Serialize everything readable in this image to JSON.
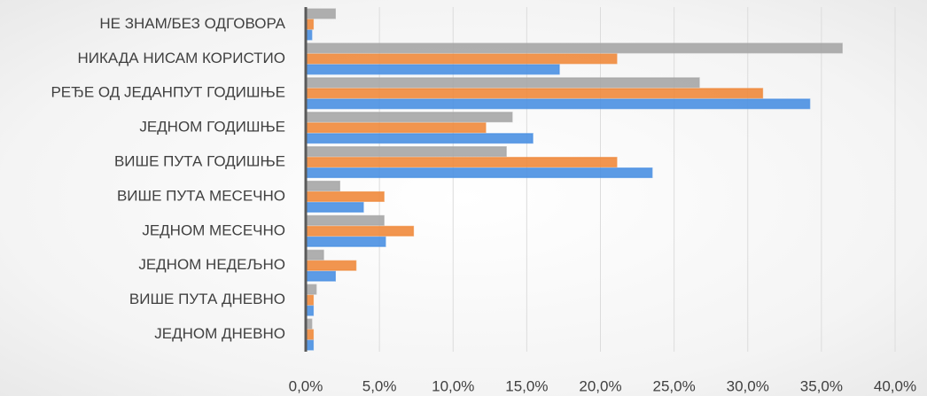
{
  "chart_data": {
    "type": "hbar",
    "categories": [
      "НЕ ЗНАМ/БЕЗ ОДГОВОРА",
      "НИКАДА НИСАМ КОРИСТИО",
      "РЕЂЕ ОД ЈЕДАНПУТ ГОДИШЊЕ",
      "ЈЕДНОМ ГОДИШЊЕ",
      "ВИШЕ ПУТА ГОДИШЊЕ",
      "ВИШЕ ПУТА МЕСЕЧНО",
      "ЈЕДНОМ МЕСЕЧНО",
      "ЈЕДНОМ НЕДЕЉНО",
      "ВИШЕ ПУТА ДНЕВНО",
      "ЈЕДНОМ ДНЕВНО"
    ],
    "series": [
      {
        "color": "#4a90e2",
        "values": [
          0.4,
          17.2,
          34.2,
          15.4,
          23.5,
          3.9,
          5.4,
          2.0,
          0.5,
          0.5
        ]
      },
      {
        "color": "#f08a3c",
        "values": [
          0.5,
          21.1,
          31.0,
          12.2,
          21.1,
          5.3,
          7.3,
          3.4,
          0.5,
          0.5
        ]
      },
      {
        "color": "#a6a6a6",
        "values": [
          2.0,
          36.4,
          26.7,
          14.0,
          13.6,
          2.3,
          5.3,
          1.2,
          0.7,
          0.4
        ]
      }
    ],
    "xlim": [
      0,
      40
    ],
    "xticks": [
      {
        "value": 0,
        "label": "0,0%"
      },
      {
        "value": 5,
        "label": "5,0%"
      },
      {
        "value": 10,
        "label": "10,0%"
      },
      {
        "value": 15,
        "label": "15,0%"
      },
      {
        "value": 20,
        "label": "20,0%"
      },
      {
        "value": 25,
        "label": "25,0%"
      },
      {
        "value": 30,
        "label": "30,0%"
      },
      {
        "value": 35,
        "label": "35,0%"
      },
      {
        "value": 40,
        "label": "40,0%"
      }
    ],
    "grid": true
  }
}
